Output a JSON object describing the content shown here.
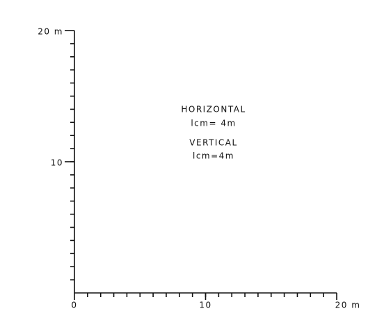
{
  "chart_data": {
    "type": "blank",
    "annotations": [
      "HORIZONTAL",
      "lcm= 4m",
      "VERTICAL",
      "lcm=4m"
    ],
    "xlim": [
      0,
      20
    ],
    "xticks": [
      0,
      10,
      {
        "value": 20,
        "label": "20 m"
      }
    ],
    "ylim": [
      0,
      20
    ],
    "yticks": [
      10,
      {
        "value": 20,
        "label": "20 m"
      }
    ],
    "minor_tick_step": 1
  }
}
